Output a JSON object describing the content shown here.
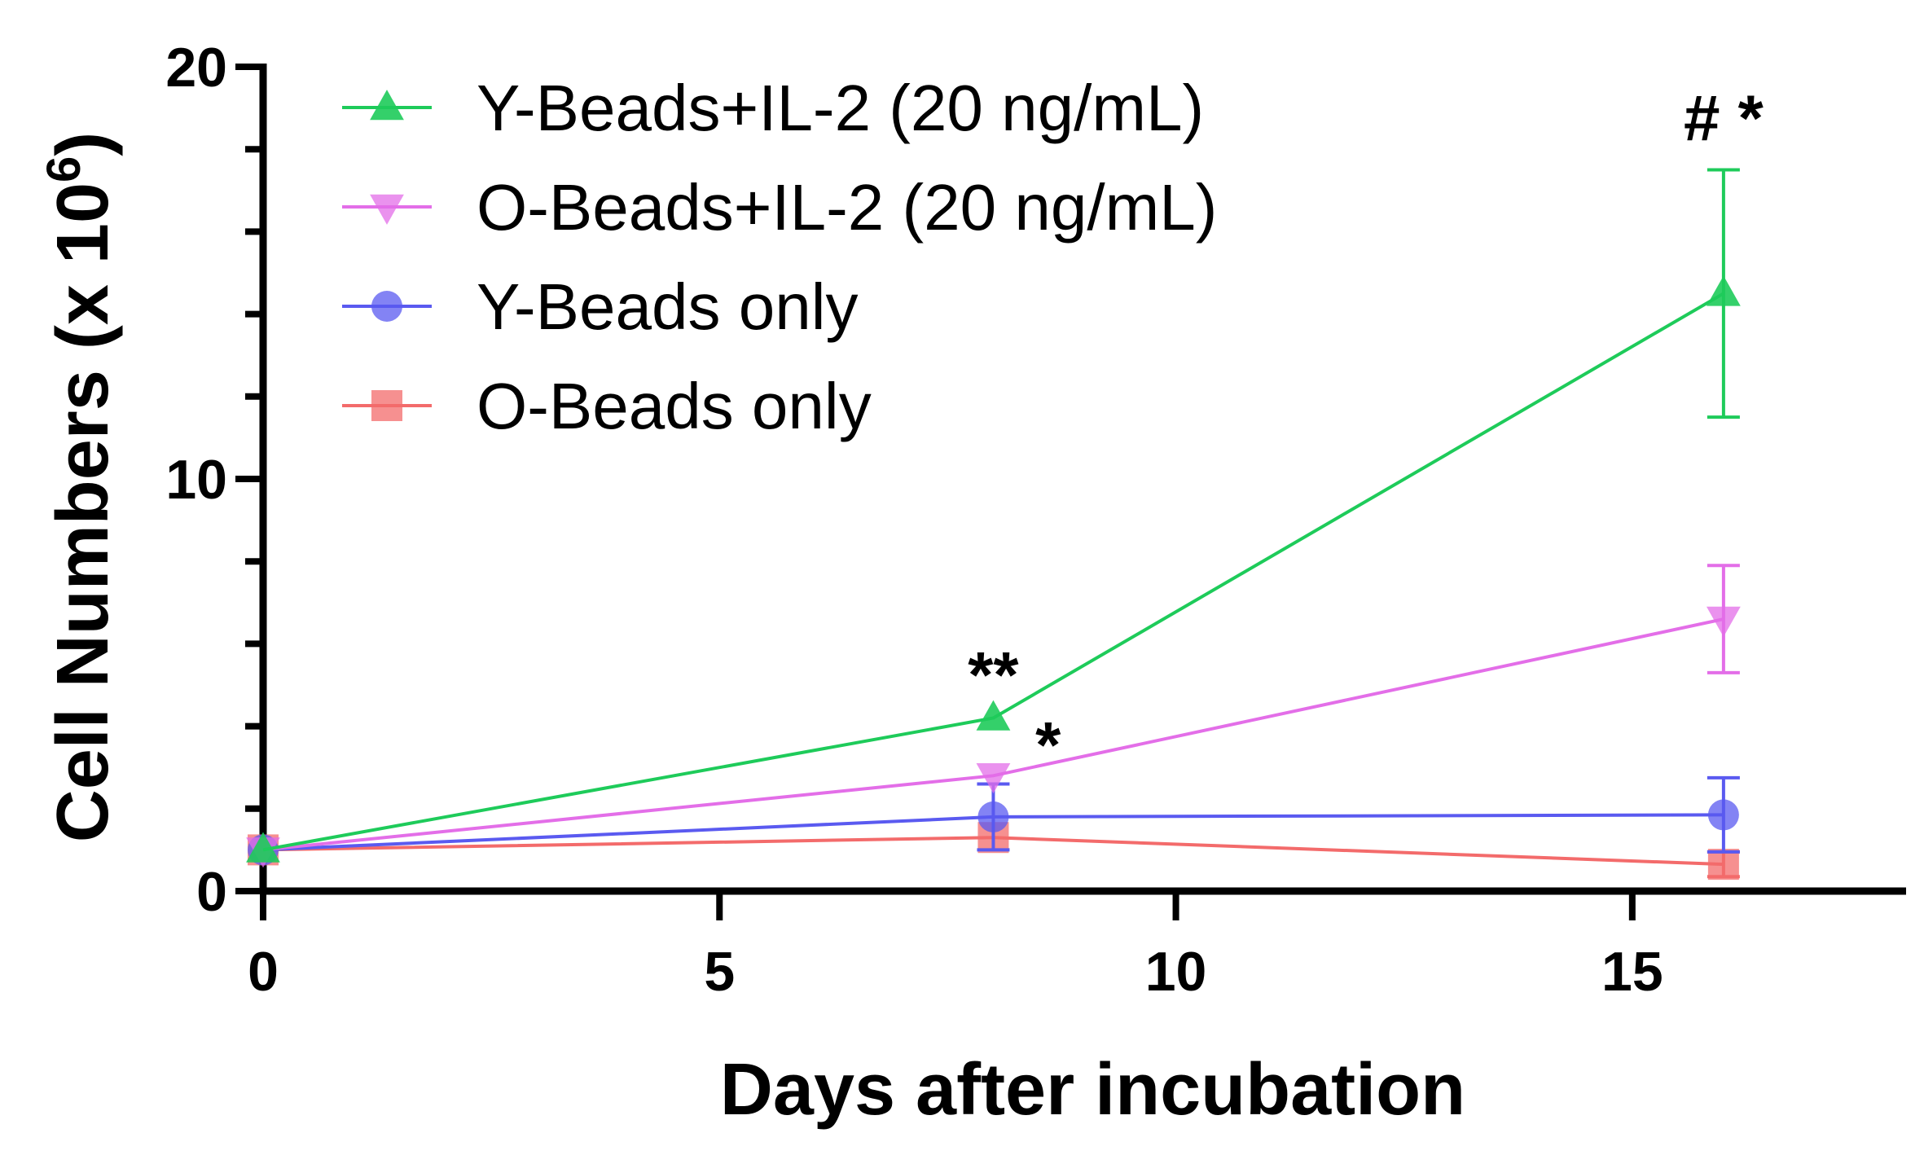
{
  "chart_data": {
    "type": "line",
    "title": "",
    "xlabel": "Days after incubation",
    "ylabel": "Cell Numbers (x 10",
    "ylabel_superscript": "6",
    "ylabel_suffix": ")",
    "xlim": [
      0,
      18
    ],
    "ylim": [
      0,
      20
    ],
    "x_ticks": [
      0,
      5,
      10,
      15
    ],
    "x_tick_labels": [
      "0",
      "5",
      "10",
      "15"
    ],
    "y_ticks": [
      0,
      10,
      20
    ],
    "y_tick_labels": [
      "0",
      "10",
      "20"
    ],
    "y_minor_step": 2,
    "grid": false,
    "legend_position": "top-left",
    "x": [
      0,
      8,
      16
    ],
    "series": [
      {
        "name": "Y-Beads+IL-2 (20 ng/mL)",
        "color": "#1ecb5a",
        "marker": "triangle-up",
        "values": [
          1.0,
          4.2,
          14.5
        ],
        "errors": [
          0,
          0,
          3.0
        ]
      },
      {
        "name": "O-Beads+IL-2 (20 ng/mL)",
        "color": "#e36ee8",
        "marker": "triangle-down",
        "values": [
          1.0,
          2.8,
          6.6
        ],
        "errors": [
          0,
          0,
          1.3
        ]
      },
      {
        "name": "Y-Beads only",
        "color": "#5a5af0",
        "marker": "circle",
        "values": [
          1.0,
          1.8,
          1.85
        ],
        "errors": [
          0,
          0.8,
          0.9
        ]
      },
      {
        "name": "O-Beads only",
        "color": "#f36b6b",
        "marker": "square",
        "values": [
          1.0,
          1.3,
          0.65
        ],
        "errors": [
          0,
          0,
          0.3
        ]
      }
    ],
    "annotations": [
      {
        "text": "**",
        "x": 8,
        "y": 5.3
      },
      {
        "text": "*",
        "x": 8.6,
        "y": 3.6
      },
      {
        "text": "# *",
        "x": 16,
        "y": 18.8
      }
    ]
  }
}
